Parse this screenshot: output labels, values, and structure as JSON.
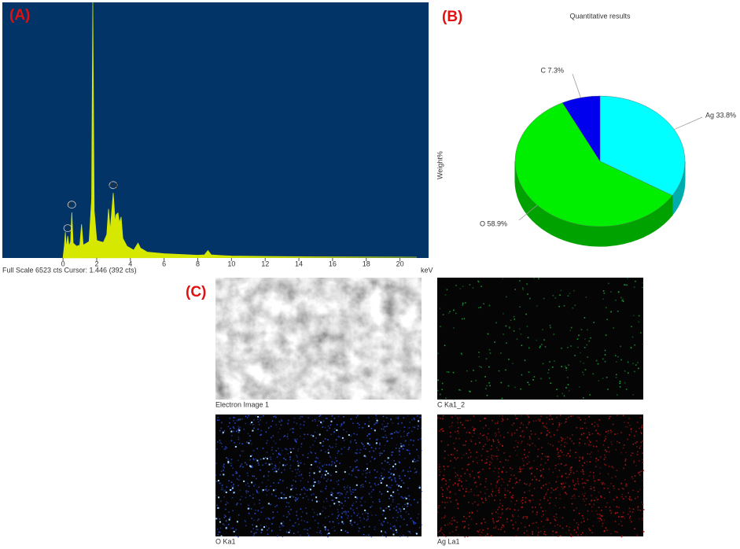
{
  "panel_labels": [
    "(A)",
    "(B)",
    "(C)"
  ],
  "chart_data": [
    {
      "type": "area",
      "x": [
        0,
        0.08,
        0.14,
        0.2,
        0.28,
        0.36,
        0.45,
        0.52,
        0.6,
        0.8,
        1.0,
        1.1,
        1.2,
        1.4,
        1.55,
        1.7,
        1.77,
        1.85,
        2.0,
        2.2,
        2.4,
        2.6,
        2.7,
        2.8,
        2.98,
        3.1,
        3.15,
        3.26,
        3.35,
        3.45,
        3.55,
        3.8,
        4.2,
        4.45,
        4.6,
        5,
        6,
        7,
        8,
        8.4,
        8.6,
        8.8,
        9.5,
        10,
        12,
        15,
        21
      ],
      "values": [
        0,
        300,
        660,
        250,
        560,
        300,
        420,
        1160,
        380,
        300,
        330,
        860,
        330,
        380,
        420,
        1500,
        6523,
        1200,
        450,
        420,
        400,
        600,
        1250,
        700,
        1660,
        900,
        1100,
        1150,
        900,
        1050,
        500,
        300,
        200,
        380,
        250,
        150,
        110,
        90,
        70,
        80,
        190,
        80,
        60,
        50,
        40,
        30,
        20
      ],
      "color": "#d6e800",
      "background": "#023468",
      "xlim": [
        -3.6,
        21.7
      ],
      "ylim": [
        0,
        6523
      ],
      "xticks": [
        0,
        2,
        4,
        6,
        8,
        10,
        12,
        14,
        16,
        18,
        20
      ],
      "xlabel": "keV",
      "footer": "Full Scale 6523 cts Cursor: 1.446  (392 cts)",
      "annotations": [
        {
          "text": "C",
          "x": 0.28
        },
        {
          "text": "O",
          "x": 0.52
        },
        {
          "text": "Ag",
          "x": 2.98
        }
      ]
    },
    {
      "type": "pie",
      "title": "Quantitative results",
      "ylabel": "Weight%",
      "categories": [
        "Ag",
        "O",
        "C"
      ],
      "values": [
        33.8,
        58.9,
        7.3
      ],
      "value_labels": [
        "Ag 33.8%",
        "O 58.9%",
        "C 7.3%"
      ],
      "colors": [
        "#00ffff",
        "#00ee00",
        "#0000ee"
      ]
    }
  ],
  "maps": [
    {
      "caption": "Electron Image 1"
    },
    {
      "caption": "C Ka1_2",
      "color": "#1fa83a"
    },
    {
      "caption": "O Ka1",
      "color": "#2c4fe0"
    },
    {
      "caption": "Ag La1",
      "color": "#c01818"
    }
  ]
}
